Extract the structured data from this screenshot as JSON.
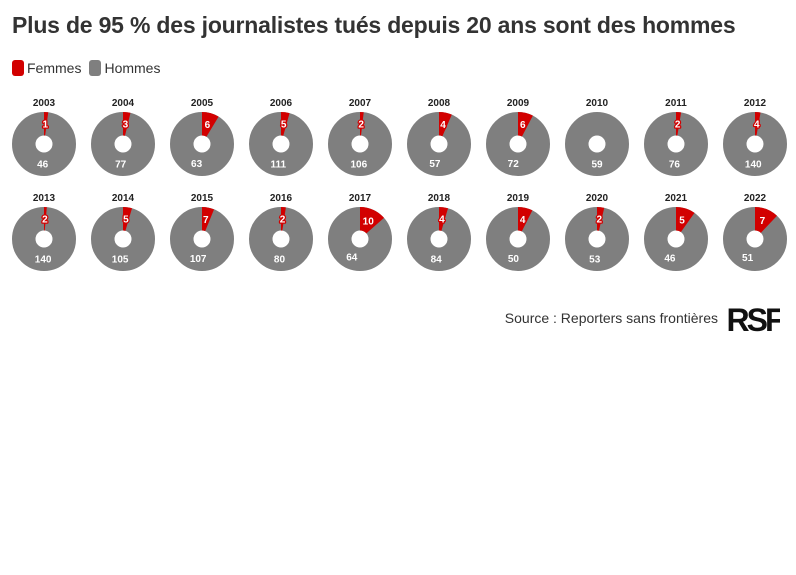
{
  "title": "Plus de 95 % des journalistes tués depuis 20 ans sont des hommes",
  "legend": [
    {
      "label": "Femmes",
      "color": "#d20000"
    },
    {
      "label": "Hommes",
      "color": "#7f7f7f"
    }
  ],
  "source": "Source : Reporters sans frontières",
  "logo": {
    "text": "RSF"
  },
  "chart_data": {
    "type": "pie",
    "chart_style": "donut small multiples",
    "series": [
      {
        "name": "Femmes",
        "color": "#d20000",
        "values": [
          1,
          3,
          6,
          5,
          2,
          4,
          6,
          null,
          2,
          4,
          2,
          5,
          7,
          2,
          10,
          4,
          4,
          2,
          5,
          7
        ]
      },
      {
        "name": "Hommes",
        "color": "#7f7f7f",
        "values": [
          46,
          77,
          63,
          111,
          106,
          57,
          72,
          59,
          76,
          140,
          140,
          105,
          107,
          80,
          64,
          84,
          50,
          53,
          46,
          51
        ]
      }
    ],
    "categories": [
      "2003",
      "2004",
      "2005",
      "2006",
      "2007",
      "2008",
      "2009",
      "2010",
      "2011",
      "2012",
      "2013",
      "2014",
      "2015",
      "2016",
      "2017",
      "2018",
      "2019",
      "2020",
      "2021",
      "2022"
    ]
  }
}
